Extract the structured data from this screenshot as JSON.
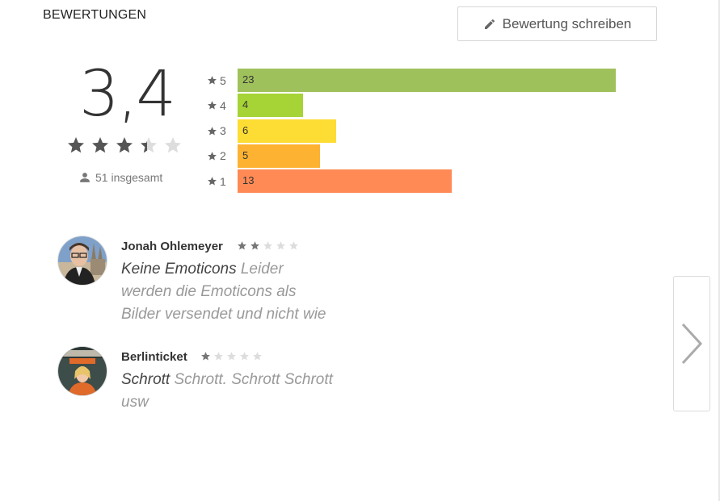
{
  "section": {
    "title": "BEWERTUNGEN"
  },
  "write_button": {
    "label": "Bewertung schreiben",
    "icon": "pencil-icon"
  },
  "summary": {
    "score": "3,4",
    "stars_value": 3.4,
    "stars_max": 5,
    "total_label": "51 insgesamt",
    "user_icon": "person-icon"
  },
  "histogram": {
    "rows": [
      {
        "stars": "5",
        "count": "23",
        "value": 23,
        "color": "#9fc15c"
      },
      {
        "stars": "4",
        "count": "4",
        "value": 4,
        "color": "#a6d336"
      },
      {
        "stars": "3",
        "count": "6",
        "value": 6,
        "color": "#fddc33"
      },
      {
        "stars": "2",
        "count": "5",
        "value": 5,
        "color": "#fdb232"
      },
      {
        "stars": "1",
        "count": "13",
        "value": 13,
        "color": "#ff8a55"
      }
    ],
    "max_value": 23
  },
  "reviews": [
    {
      "author": "Jonah Ohlemeyer",
      "rating": 2,
      "title": "Keine Emoticons",
      "body_line1": " Leider",
      "body_line2": "werden die Emoticons als",
      "body_line3": "Bilder versendet und nicht wie"
    },
    {
      "author": "Berlinticket",
      "rating": 1,
      "title": "Schrott",
      "body_line1": " Schrott. Schrott Schrott",
      "body_line2": "usw"
    }
  ],
  "pager": {
    "icon": "chevron-right-icon"
  }
}
